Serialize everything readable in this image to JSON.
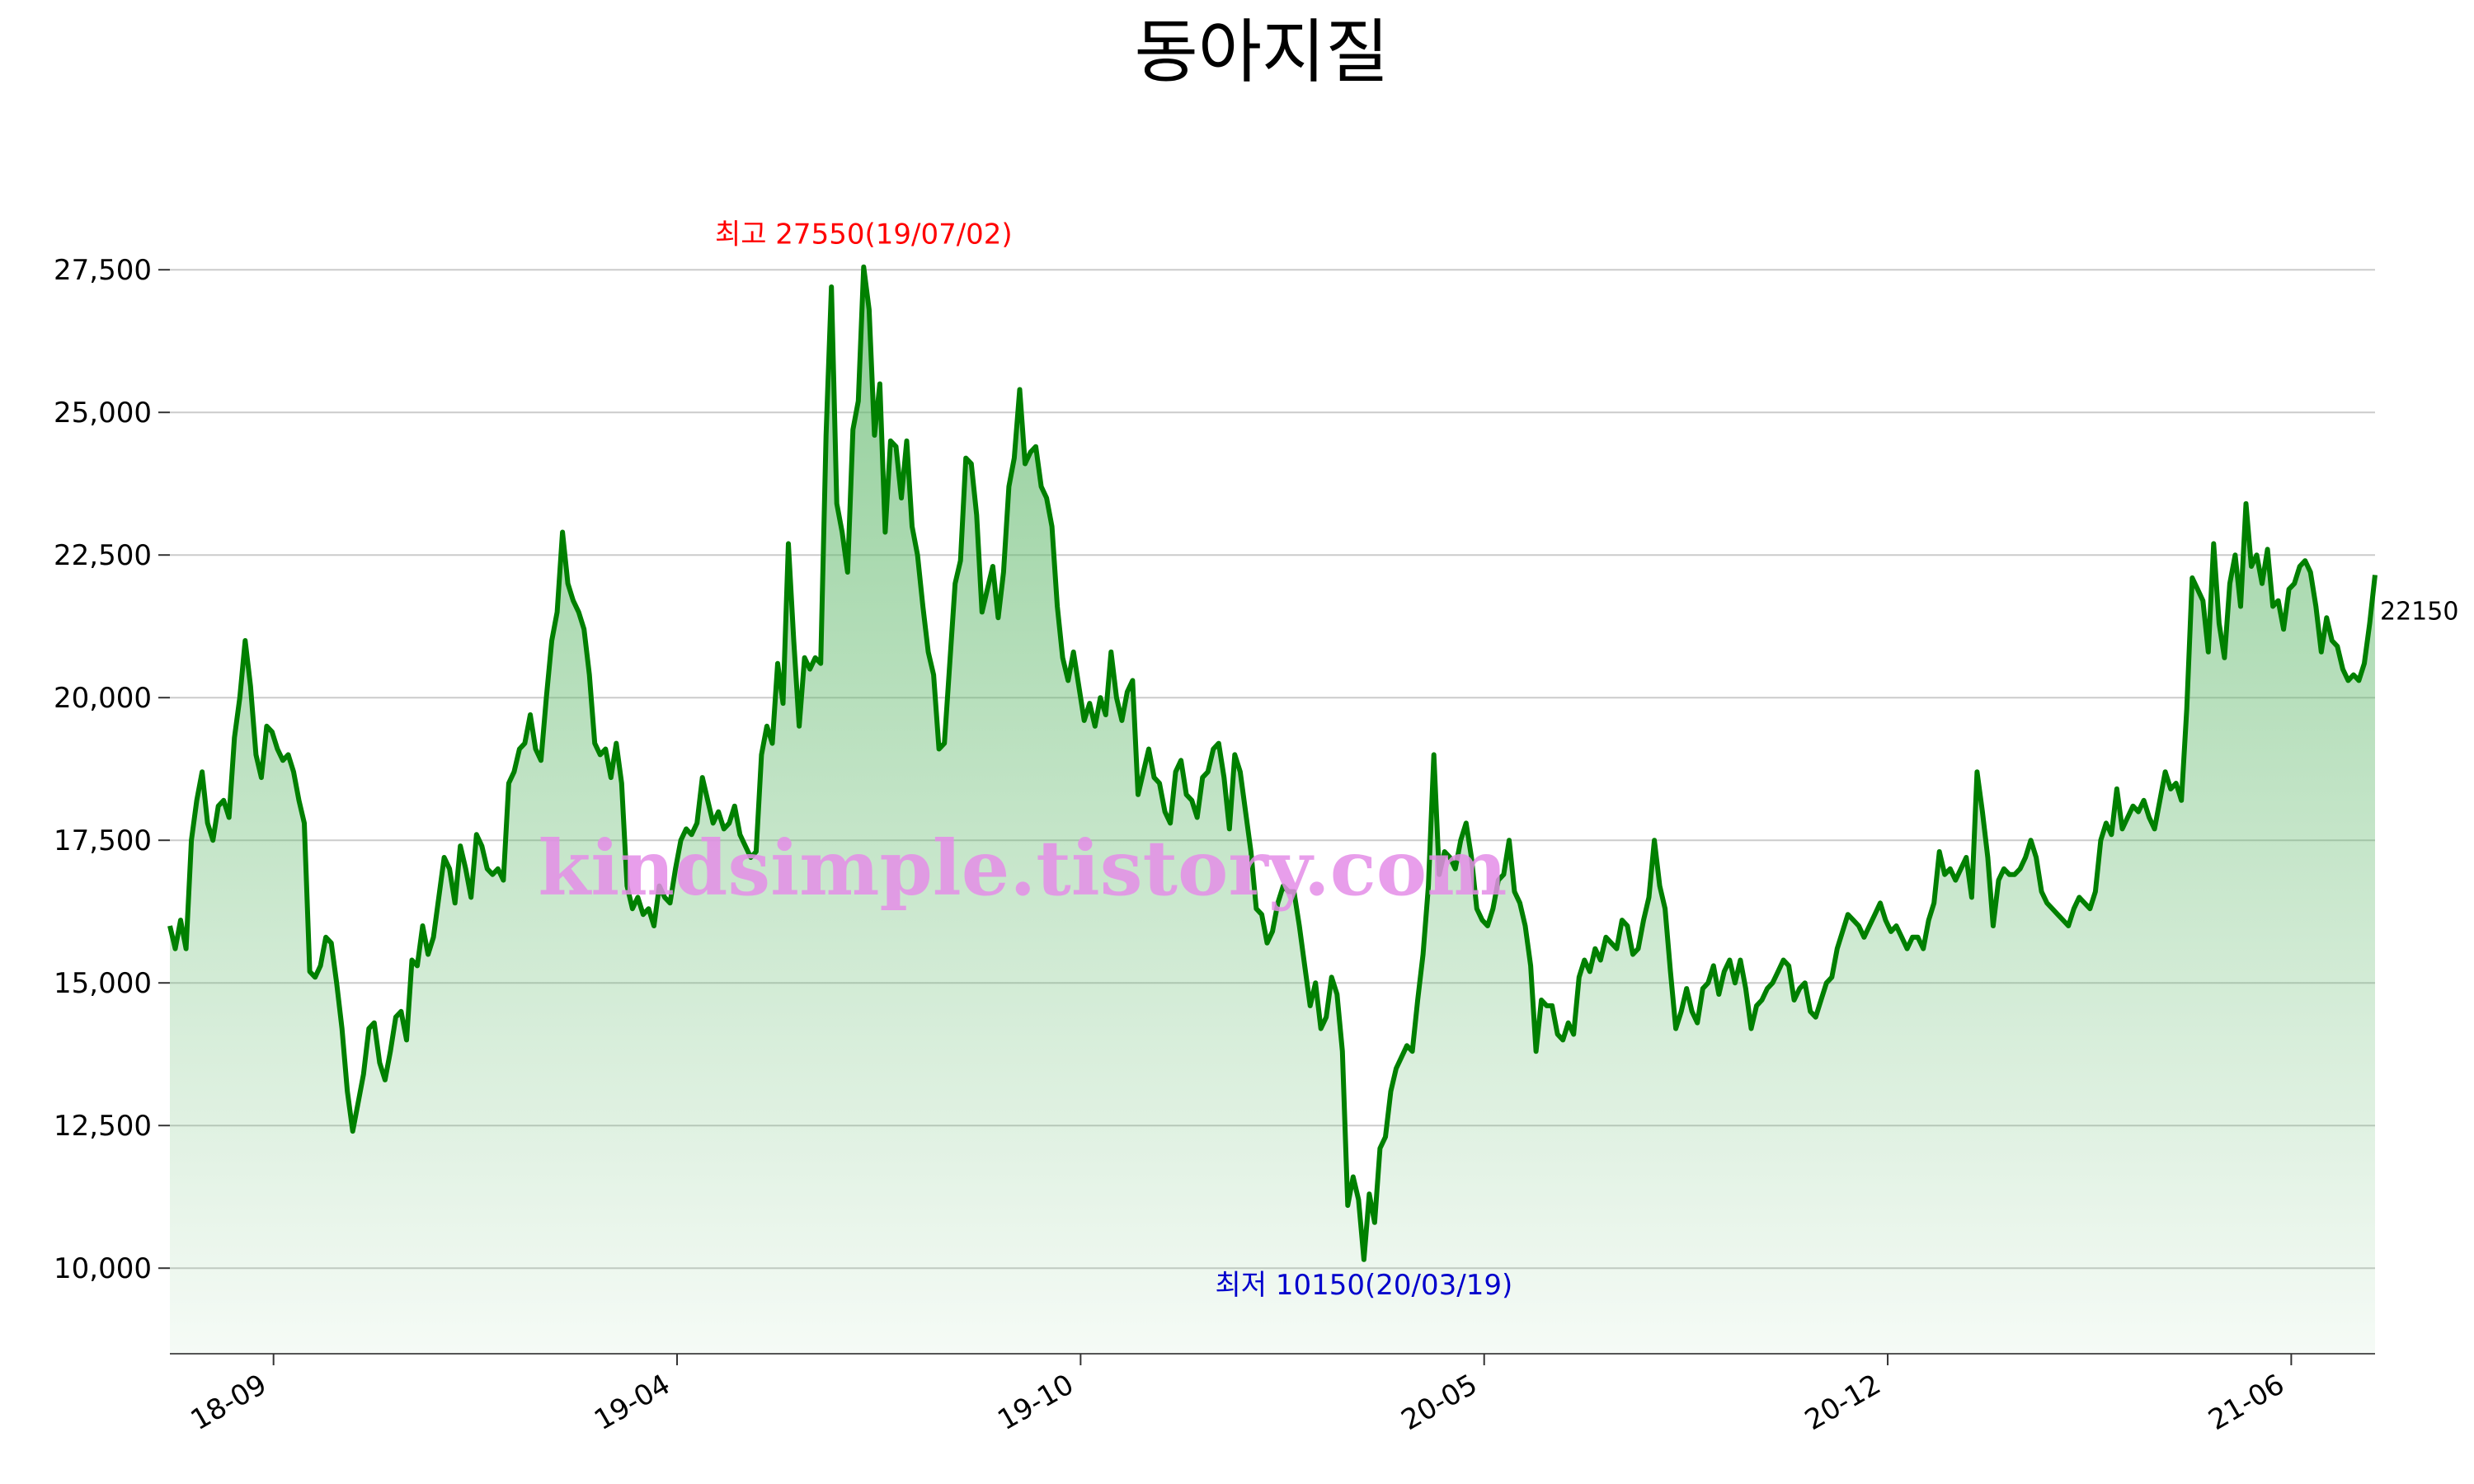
{
  "chart_data": {
    "type": "area",
    "title": "동아지질",
    "xlabel": "",
    "ylabel": "",
    "ylim": [
      8500,
      28500
    ],
    "y_ticks": [
      10000,
      12500,
      15000,
      17500,
      20000,
      22500,
      25000,
      27500
    ],
    "y_tick_labels": [
      "10,000",
      "12,500",
      "15,000",
      "17,500",
      "20,000",
      "22,500",
      "25,000",
      "27,500"
    ],
    "x_ticks": [
      "18-09",
      "19-04",
      "19-10",
      "20-05",
      "20-12",
      "21-06"
    ],
    "grid": true,
    "legend": "none",
    "colors": {
      "line": "#008000",
      "fill": "#5fb86a",
      "grid": "#cccccc",
      "max": "#ff0000",
      "min": "#0000cc"
    },
    "annotations": {
      "max": {
        "label": "최고 27550(19/07/02)",
        "value": 27550,
        "date": "19/07/02"
      },
      "min": {
        "label": "최저 10150(20/03/19)",
        "value": 10150,
        "date": "20/03/19"
      },
      "last": {
        "label": "22150",
        "value": 22150
      }
    },
    "watermark": "kindsimple.tistory.com",
    "series": [
      {
        "values": [
          16000,
          15600,
          16100,
          15600,
          17500,
          18200,
          18700,
          17800,
          17500,
          18100,
          18200,
          17900,
          19300,
          20000,
          21000,
          20200,
          19000,
          18600,
          19500,
          19400,
          19100,
          18900,
          19000,
          18700,
          18200,
          17800,
          15200,
          15100,
          15300,
          15800,
          15700,
          15000,
          14200,
          13100,
          12400,
          12900,
          13400,
          14200,
          14300,
          13600,
          13300,
          13800,
          14400,
          14500,
          14000,
          15400,
          15300,
          16000,
          15500,
          15800,
          16500,
          17200,
          17000,
          16400,
          17400,
          17000,
          16500,
          17600,
          17400,
          17000,
          16900,
          17000,
          16800,
          18500,
          18700,
          19100,
          19200,
          19700,
          19100,
          18900,
          20000,
          21000,
          21500,
          22900,
          22000,
          21700,
          21500,
          21200,
          20400,
          19200,
          19000,
          19100,
          18600,
          19200,
          18500,
          16700,
          16300,
          16500,
          16200,
          16300,
          16000,
          16700,
          16500,
          16400,
          17000,
          17500,
          17700,
          17600,
          17800,
          18600,
          18200,
          17800,
          18000,
          17700,
          17800,
          18100,
          17600,
          17400,
          17200,
          17300,
          19000,
          19500,
          19200,
          20600,
          19900,
          22700,
          21000,
          19500,
          20700,
          20500,
          20700,
          20600,
          24600,
          27200,
          23400,
          22900,
          22200,
          24700,
          25200,
          27550,
          26800,
          24600,
          25500,
          22900,
          24500,
          24400,
          23500,
          24500,
          23000,
          22500,
          21600,
          20800,
          20400,
          19100,
          19200,
          20600,
          22000,
          22400,
          24200,
          24100,
          23200,
          21500,
          21900,
          22300,
          21400,
          22200,
          23700,
          24200,
          25400,
          24100,
          24300,
          24400,
          23700,
          23500,
          23000,
          21600,
          20700,
          20300,
          20800,
          20200,
          19600,
          19900,
          19500,
          20000,
          19700,
          20800,
          20000,
          19600,
          20100,
          20300,
          18300,
          18700,
          19100,
          18600,
          18500,
          18000,
          17800,
          18700,
          18900,
          18300,
          18200,
          17900,
          18600,
          18700,
          19100,
          19200,
          18600,
          17700,
          19000,
          18700,
          18000,
          17300,
          16300,
          16200,
          15700,
          15900,
          16400,
          16700,
          16600,
          16600,
          16000,
          15300,
          14600,
          15000,
          14200,
          14400,
          15100,
          14800,
          13800,
          11100,
          11600,
          11200,
          10150,
          11300,
          10800,
          12100,
          12300,
          13100,
          13500,
          13700,
          13900,
          13800,
          14700,
          15500,
          16700,
          19000,
          16900,
          17300,
          17200,
          17000,
          17500,
          17800,
          17200,
          16300,
          16100,
          16000,
          16300,
          16800,
          16900,
          17500,
          16600,
          16400,
          16000,
          15300,
          13800,
          14700,
          14600,
          14600,
          14100,
          14000,
          14300,
          14100,
          15100,
          15400,
          15200,
          15600,
          15400,
          15800,
          15700,
          15600,
          16100,
          16000,
          15500,
          15600,
          16100,
          16500,
          17500,
          16700,
          16300,
          15200,
          14200,
          14500,
          14900,
          14500,
          14300,
          14900,
          15000,
          15300,
          14800,
          15200,
          15400,
          15000,
          15400,
          14900,
          14200,
          14600,
          14700,
          14900,
          15000,
          15200,
          15400,
          15300,
          14700,
          14900,
          15000,
          14500,
          14400,
          14700,
          15000,
          15100,
          15600,
          15900,
          16200,
          16100,
          16000,
          15800,
          16000,
          16200,
          16400,
          16100,
          15900,
          16000,
          15800,
          15600,
          15800,
          15800,
          15600,
          16100,
          16400,
          17300,
          16900,
          17000,
          16800,
          17000,
          17200,
          16500,
          18700,
          18000,
          17200,
          16000,
          16800,
          17000,
          16900,
          16900,
          17000,
          17200,
          17500,
          17200,
          16600,
          16400,
          16300,
          16200,
          16100,
          16000,
          16300,
          16500,
          16400,
          16300,
          16600,
          17500,
          17800,
          17600,
          18400,
          17700,
          17900,
          18100,
          18000,
          18200,
          17900,
          17700,
          18200,
          18700,
          18400,
          18500,
          18200,
          19800,
          22100,
          21900,
          21700,
          20800,
          22700,
          21300,
          20700,
          22000,
          22500,
          21600,
          23400,
          22300,
          22500,
          22000,
          22600,
          21600,
          21700,
          21200,
          21900,
          22000,
          22300,
          22400,
          22200,
          21600,
          20800,
          21400,
          21000,
          20900,
          20500,
          20300,
          20400,
          20300,
          20600,
          21300,
          22150
        ]
      }
    ]
  }
}
